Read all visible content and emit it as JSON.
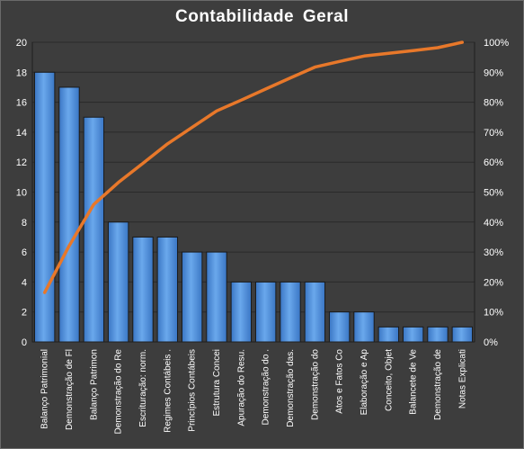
{
  "chart_data": {
    "type": "bar",
    "title": "Contabilidade  Geral",
    "categories": [
      "Balanço Patrimonial",
      "Demonstração de Fl",
      "Balanço Patrimon",
      "Demonstração do Re",
      "Escrituração: norm.",
      "Regimes Contábeis .",
      "Princípios Contábeis",
      "Estrutura Concei",
      "Apuração do Resu.",
      "Demonstração do .",
      "Demonstração das.",
      "Demonstração do",
      "Atos e Fatos Co",
      "Elaboração e Ap",
      "Conceito, Objet",
      "Balancete de Ve",
      "Demonstração de",
      "Notas Explicati"
    ],
    "series": [
      {
        "type": "bar",
        "values": [
          18,
          17,
          15,
          8,
          7,
          7,
          6,
          6,
          4,
          4,
          4,
          4,
          2,
          2,
          1,
          1,
          1,
          1
        ],
        "color": "#4f8fd8"
      },
      {
        "type": "line",
        "axis": "right",
        "values": [
          16.5,
          32.1,
          45.9,
          53.2,
          59.6,
          66.1,
          71.6,
          77.1,
          80.7,
          84.4,
          88.1,
          91.7,
          93.6,
          95.4,
          96.3,
          97.2,
          98.2,
          100
        ],
        "color": "#e8782a"
      }
    ],
    "y_left": {
      "ylim": [
        0,
        20
      ],
      "ticks": [
        "0",
        "2",
        "4",
        "6",
        "8",
        "10",
        "12",
        "14",
        "16",
        "18",
        "20"
      ]
    },
    "y_right": {
      "ylim": [
        0,
        100
      ],
      "ticks": [
        "0%",
        "10%",
        "20%",
        "30%",
        "40%",
        "50%",
        "60%",
        "70%",
        "80%",
        "90%",
        "100%"
      ]
    },
    "grid": true,
    "legend": "none"
  }
}
